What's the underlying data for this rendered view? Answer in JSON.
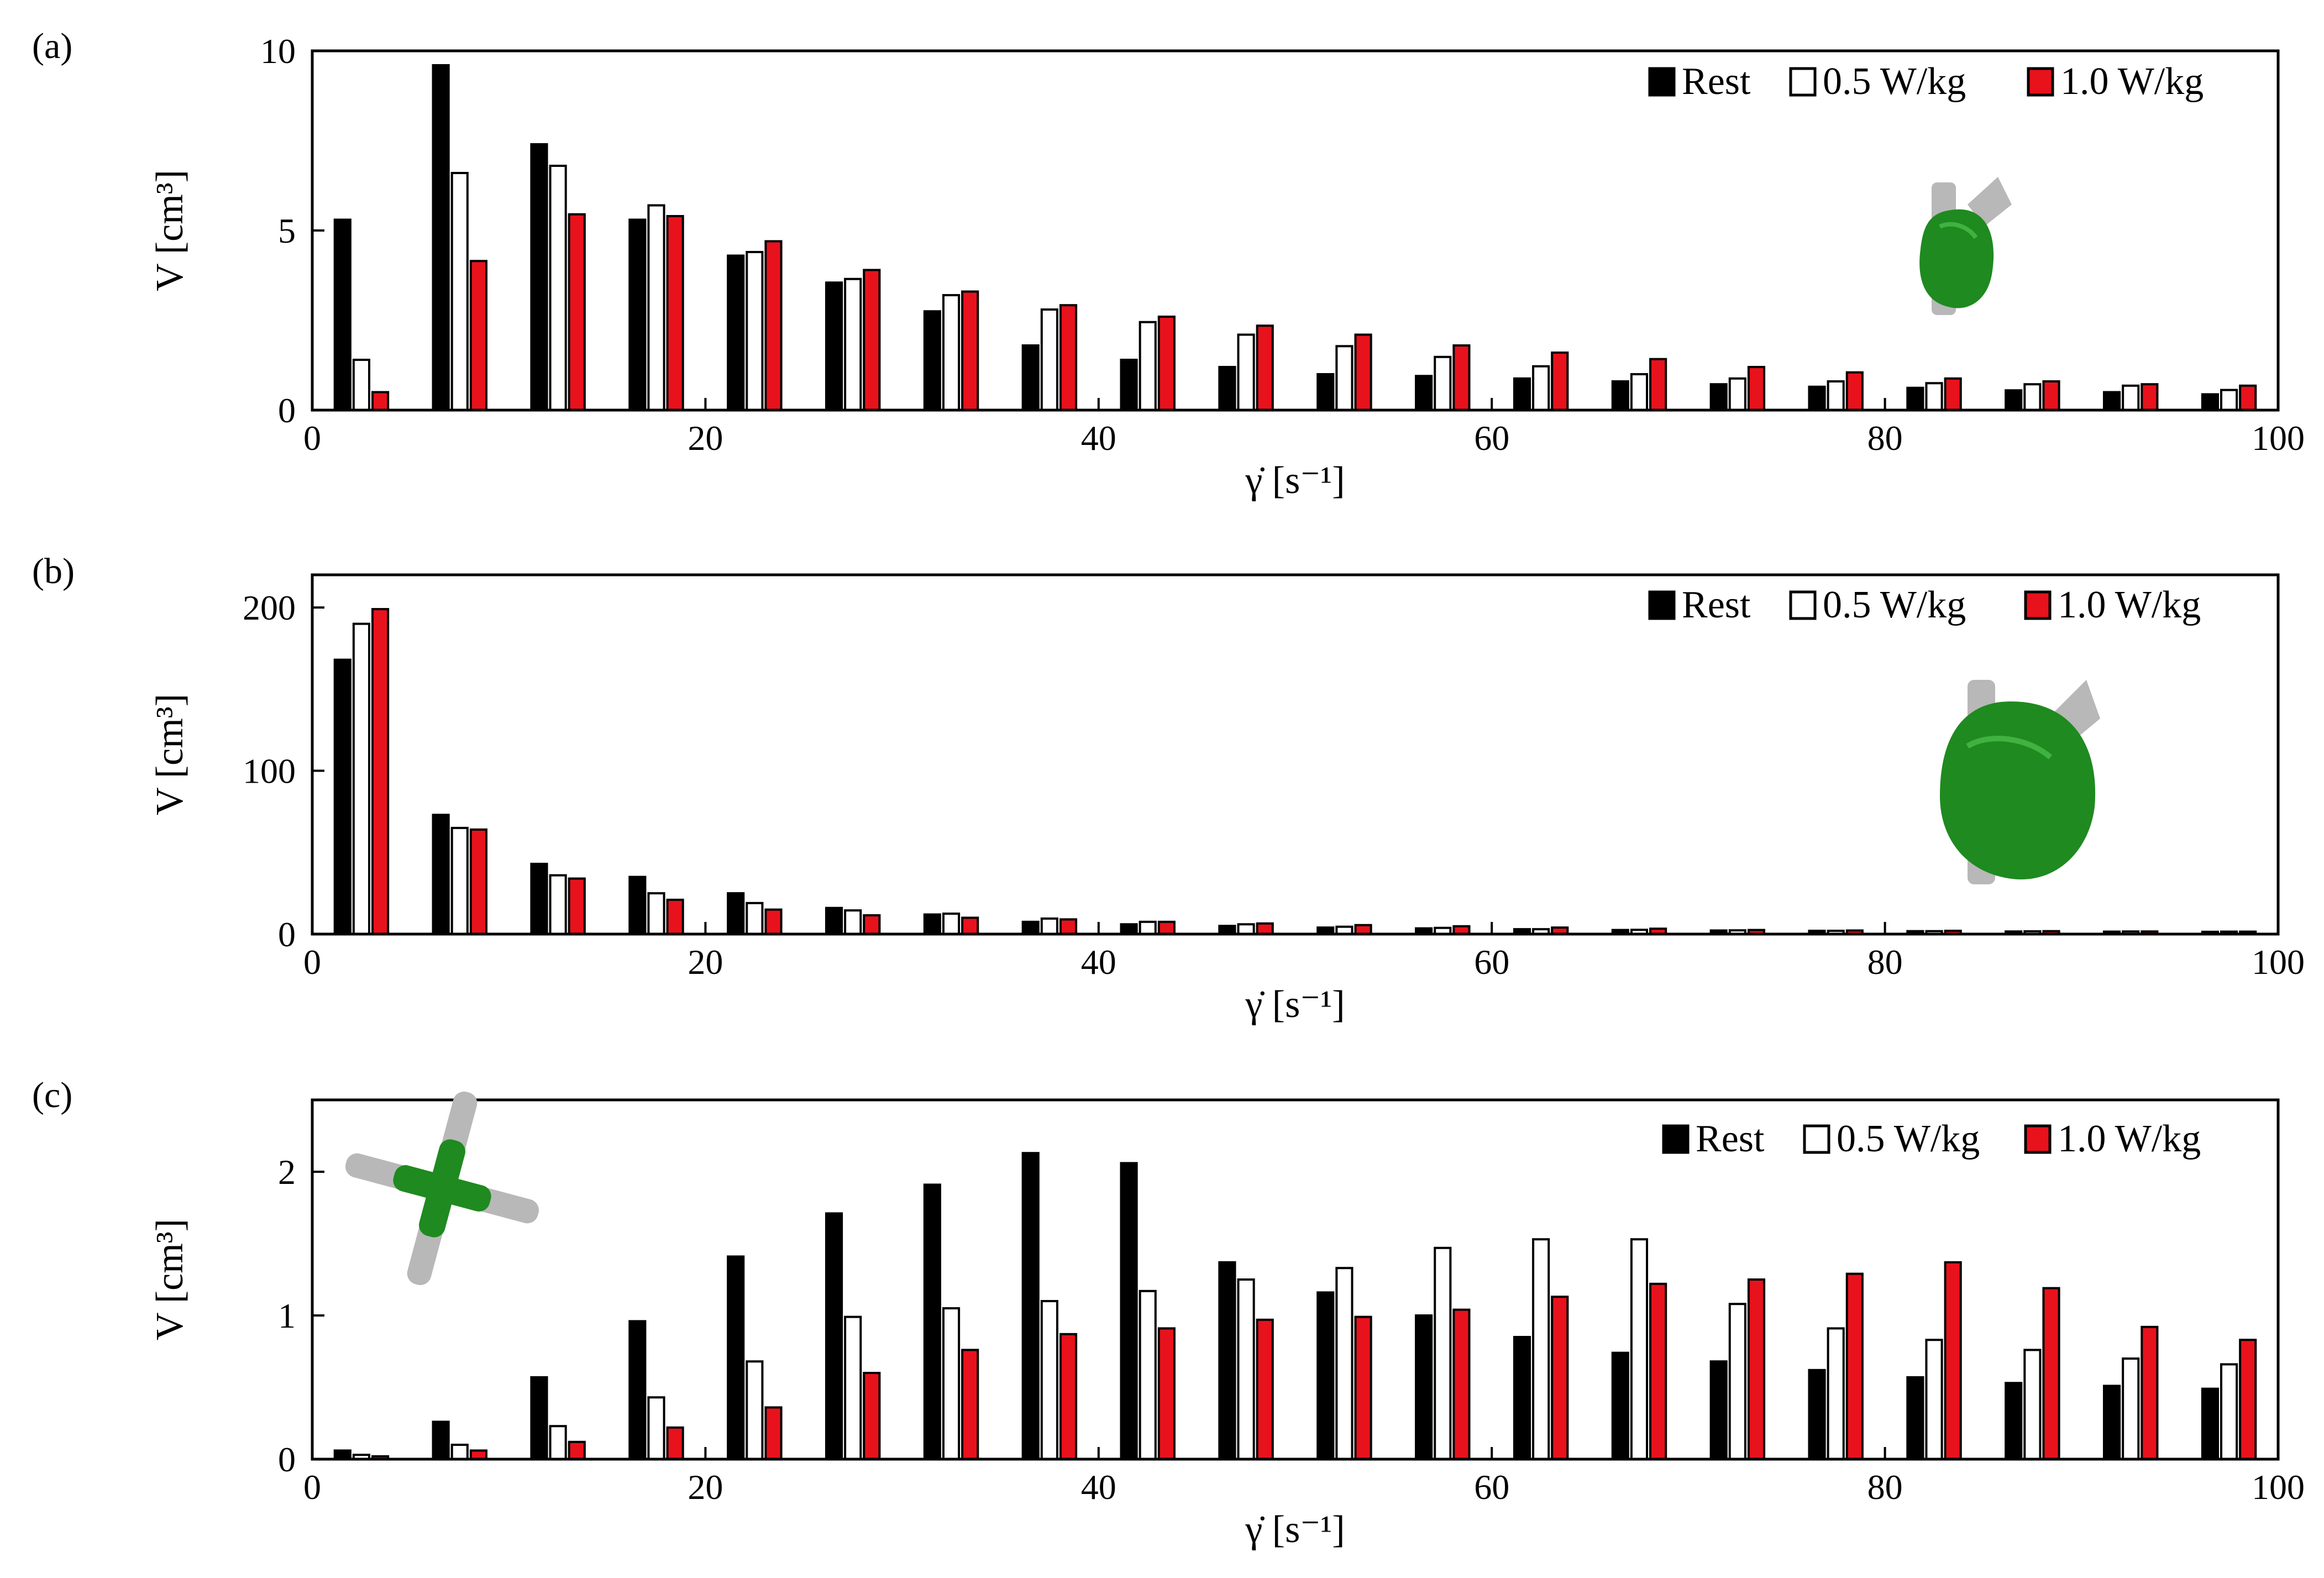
{
  "chart_data": [
    {
      "panel": "(a)",
      "type": "bar",
      "xlabel": "γ̇ [s⁻¹]",
      "ylabel": "V [cm³]",
      "xlim": [
        0,
        100
      ],
      "ylim": [
        0,
        10
      ],
      "xticks": [
        "0",
        "20",
        "40",
        "60",
        "80",
        "100"
      ],
      "yticks": [
        "0",
        "5",
        "10"
      ],
      "x": [
        2.5,
        7.5,
        12.5,
        17.5,
        22.5,
        27.5,
        32.5,
        37.5,
        42.5,
        47.5,
        52.5,
        57.5,
        62.5,
        67.5,
        72.5,
        77.5,
        82.5,
        87.5,
        92.5,
        97.5
      ],
      "series": [
        {
          "name": "Rest",
          "values": [
            5.3,
            9.6,
            7.4,
            5.3,
            4.3,
            3.55,
            2.75,
            1.8,
            1.4,
            1.2,
            1.0,
            0.95,
            0.88,
            0.8,
            0.72,
            0.65,
            0.62,
            0.55,
            0.5,
            0.44
          ]
        },
        {
          "name": "0.5 W/kg",
          "values": [
            1.4,
            6.6,
            6.8,
            5.7,
            4.4,
            3.65,
            3.2,
            2.8,
            2.45,
            2.1,
            1.78,
            1.48,
            1.22,
            1.0,
            0.88,
            0.8,
            0.75,
            0.72,
            0.68,
            0.56
          ]
        },
        {
          "name": "1.0 W/kg",
          "values": [
            0.5,
            4.15,
            5.45,
            5.4,
            4.7,
            3.9,
            3.3,
            2.92,
            2.6,
            2.35,
            2.1,
            1.8,
            1.6,
            1.42,
            1.2,
            1.05,
            0.88,
            0.8,
            0.72,
            0.68
          ]
        }
      ],
      "legend_position": "top-right",
      "inset_icon": "left-atrium-model-small"
    },
    {
      "panel": "(b)",
      "type": "bar",
      "xlabel": "γ̇ [s⁻¹]",
      "ylabel": "V [cm³]",
      "xlim": [
        0,
        100
      ],
      "ylim": [
        0,
        220
      ],
      "xticks": [
        "0",
        "20",
        "40",
        "60",
        "80",
        "100"
      ],
      "yticks": [
        "0",
        "100",
        "200"
      ],
      "x": [
        2.5,
        7.5,
        12.5,
        17.5,
        22.5,
        27.5,
        32.5,
        37.5,
        42.5,
        47.5,
        52.5,
        57.5,
        62.5,
        67.5,
        72.5,
        77.5,
        82.5,
        87.5,
        92.5,
        97.5
      ],
      "series": [
        {
          "name": "Rest",
          "values": [
            168,
            73,
            43,
            35,
            25,
            16,
            12,
            7.5,
            6,
            5,
            4,
            3.5,
            3,
            2.5,
            2.2,
            2,
            1.8,
            1.6,
            1.5,
            1.4
          ]
        },
        {
          "name": "0.5 W/kg",
          "values": [
            190,
            65,
            36,
            25,
            19,
            14.5,
            12.5,
            9.5,
            7.5,
            6,
            4.5,
            3.8,
            3,
            2.6,
            2.3,
            2,
            1.8,
            1.7,
            1.6,
            1.5
          ]
        },
        {
          "name": "1.0 W/kg",
          "values": [
            199,
            64,
            34,
            21,
            15,
            11.5,
            10,
            9,
            7.5,
            6.5,
            5.5,
            4.8,
            4,
            3.3,
            2.5,
            2.2,
            2,
            1.8,
            1.6,
            1.5
          ]
        }
      ],
      "legend_position": "top-right",
      "inset_icon": "left-atrium-model-large"
    },
    {
      "panel": "(c)",
      "type": "bar",
      "xlabel": "γ̇ [s⁻¹]",
      "ylabel": "V [cm³]",
      "xlim": [
        0,
        100
      ],
      "ylim": [
        0,
        2.5
      ],
      "xticks": [
        "0",
        "20",
        "40",
        "60",
        "80",
        "100"
      ],
      "yticks": [
        "0",
        "1",
        "2"
      ],
      "x": [
        2.5,
        7.5,
        12.5,
        17.5,
        22.5,
        27.5,
        32.5,
        37.5,
        42.5,
        47.5,
        52.5,
        57.5,
        62.5,
        67.5,
        72.5,
        77.5,
        82.5,
        87.5,
        92.5,
        97.5
      ],
      "series": [
        {
          "name": "Rest",
          "values": [
            0.06,
            0.26,
            0.57,
            0.96,
            1.41,
            1.71,
            1.91,
            2.13,
            2.06,
            1.37,
            1.16,
            1.0,
            0.85,
            0.74,
            0.68,
            0.62,
            0.57,
            0.53,
            0.51,
            0.49
          ]
        },
        {
          "name": "0.5 W/kg",
          "values": [
            0.03,
            0.1,
            0.23,
            0.43,
            0.68,
            0.99,
            1.05,
            1.1,
            1.17,
            1.25,
            1.33,
            1.47,
            1.53,
            1.53,
            1.08,
            0.91,
            0.83,
            0.76,
            0.7,
            0.66
          ]
        },
        {
          "name": "1.0 W/kg",
          "values": [
            0.02,
            0.06,
            0.12,
            0.22,
            0.36,
            0.6,
            0.76,
            0.87,
            0.91,
            0.97,
            0.99,
            1.04,
            1.13,
            1.22,
            1.25,
            1.29,
            1.37,
            1.19,
            0.92,
            0.83
          ]
        }
      ],
      "legend_position": "top-right",
      "inset_icon": "cross-junction-model"
    }
  ],
  "colors": {
    "rest": "#000000",
    "w05_fill": "#ffffff",
    "w10": "#e8121c",
    "model_green": "#1f8a1f",
    "model_grey": "#b8b8b8"
  }
}
